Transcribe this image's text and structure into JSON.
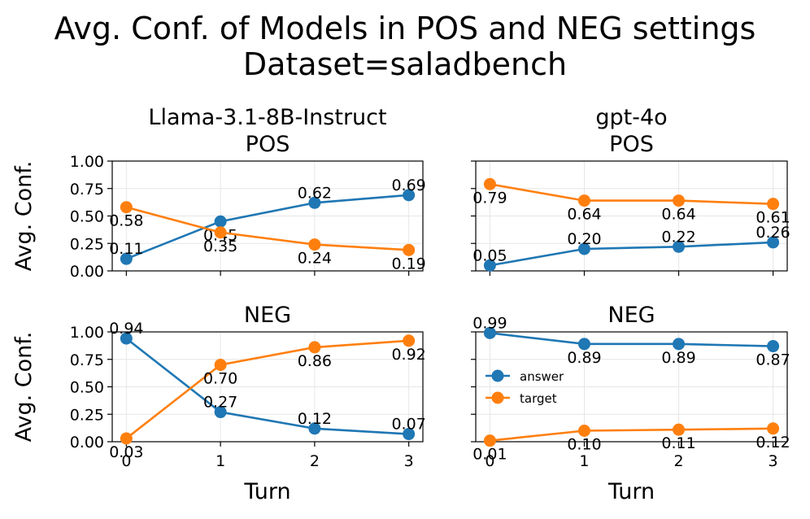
{
  "figure": {
    "title_line1": "Avg. Conf. of Models in POS and NEG settings",
    "title_line2": "Dataset=saladbench"
  },
  "colors": {
    "answer": "#1f77b4",
    "target": "#ff7f0e",
    "grid": "#e6e6e6"
  },
  "chart_data": [
    {
      "type": "line",
      "title": "Llama-3.1-8B-Instruct\nPOS",
      "model": "Llama-3.1-8B-Instruct",
      "setting": "POS",
      "xlabel": "",
      "ylabel": "Avg. Conf.",
      "x": [
        0,
        1,
        2,
        3
      ],
      "xlim": [
        -0.15,
        3.15
      ],
      "ylim": [
        0,
        1
      ],
      "yticks": [
        "0.00",
        "0.25",
        "0.50",
        "0.75",
        "1.00"
      ],
      "series": [
        {
          "name": "answer",
          "values": [
            0.11,
            0.45,
            0.62,
            0.69
          ],
          "labels": [
            "0.11",
            "0.45",
            "0.62",
            "0.69"
          ]
        },
        {
          "name": "target",
          "values": [
            0.58,
            0.35,
            0.24,
            0.19
          ],
          "labels": [
            "0.58",
            "0.35",
            "0.24",
            "0.19"
          ]
        }
      ]
    },
    {
      "type": "line",
      "title": "gpt-4o\nPOS",
      "model": "gpt-4o",
      "setting": "POS",
      "xlabel": "",
      "ylabel": "",
      "x": [
        0,
        1,
        2,
        3
      ],
      "xlim": [
        -0.15,
        3.15
      ],
      "ylim": [
        0,
        1
      ],
      "series": [
        {
          "name": "answer",
          "values": [
            0.05,
            0.2,
            0.22,
            0.26
          ],
          "labels": [
            "0.05",
            "0.20",
            "0.22",
            "0.26"
          ]
        },
        {
          "name": "target",
          "values": [
            0.79,
            0.64,
            0.64,
            0.61
          ],
          "labels": [
            "0.79",
            "0.64",
            "0.64",
            "0.61"
          ]
        }
      ]
    },
    {
      "type": "line",
      "title": "NEG",
      "model": "Llama-3.1-8B-Instruct",
      "setting": "NEG",
      "xlabel": "Turn",
      "ylabel": "Avg. Conf.",
      "x": [
        0,
        1,
        2,
        3
      ],
      "xticks": [
        "0",
        "1",
        "2",
        "3"
      ],
      "xlim": [
        -0.15,
        3.15
      ],
      "ylim": [
        0,
        1
      ],
      "yticks": [
        "0.00",
        "0.25",
        "0.50",
        "0.75",
        "1.00"
      ],
      "series": [
        {
          "name": "answer",
          "values": [
            0.94,
            0.27,
            0.12,
            0.07
          ],
          "labels": [
            "0.94",
            "0.27",
            "0.12",
            "0.07"
          ]
        },
        {
          "name": "target",
          "values": [
            0.03,
            0.7,
            0.86,
            0.92
          ],
          "labels": [
            "0.03",
            "0.70",
            "0.86",
            "0.92"
          ]
        }
      ]
    },
    {
      "type": "line",
      "title": "NEG",
      "model": "gpt-4o",
      "setting": "NEG",
      "xlabel": "Turn",
      "ylabel": "",
      "x": [
        0,
        1,
        2,
        3
      ],
      "xticks": [
        "0",
        "1",
        "2",
        "3"
      ],
      "xlim": [
        -0.15,
        3.15
      ],
      "ylim": [
        0,
        1
      ],
      "legend": {
        "entries": [
          "answer",
          "target"
        ],
        "placement": "center-left"
      },
      "series": [
        {
          "name": "answer",
          "values": [
            0.99,
            0.89,
            0.89,
            0.87
          ],
          "labels": [
            "0.99",
            "0.89",
            "0.89",
            "0.87"
          ]
        },
        {
          "name": "target",
          "values": [
            0.01,
            0.1,
            0.11,
            0.12
          ],
          "labels": [
            "0.01",
            "0.10",
            "0.11",
            "0.12"
          ]
        }
      ]
    }
  ]
}
